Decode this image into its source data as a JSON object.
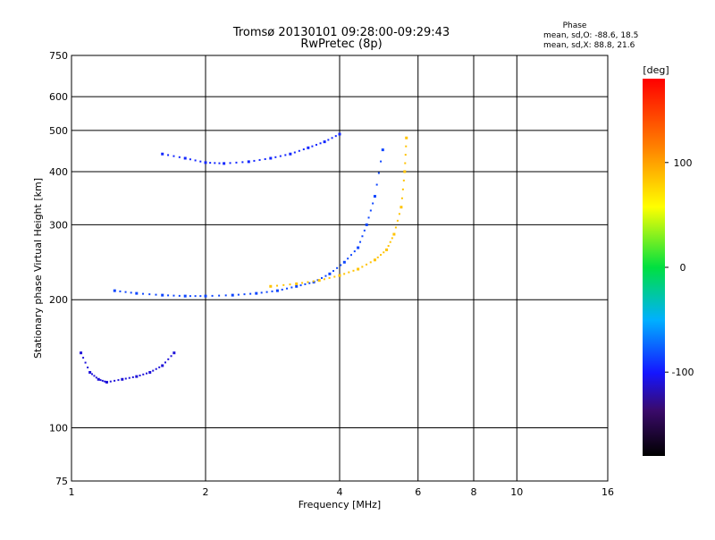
{
  "chart_data": {
    "type": "scatter",
    "title": "Tromsø 20130101 09:28:00-09:29:43",
    "subtitle": "RwPretec (8p)",
    "xlabel": "Frequency [MHz]",
    "ylabel": "Stationary phase Virtual Height [km]",
    "x_scale": "log",
    "y_scale": "log",
    "xlim": [
      1,
      16
    ],
    "ylim": [
      75,
      750
    ],
    "grid": true,
    "x_ticks": [
      1,
      2,
      4,
      6,
      8,
      10,
      16
    ],
    "x_tick_labels": [
      "1",
      "2",
      "4",
      "6",
      "8",
      "10",
      "16"
    ],
    "y_ticks": [
      75,
      100,
      200,
      300,
      400,
      500,
      600,
      750
    ],
    "y_tick_labels": [
      "75",
      "100",
      "200",
      "300",
      "400",
      "500",
      "600",
      "750"
    ],
    "phase_stats": {
      "heading": "Phase",
      "line_o": "mean, sd,O: -88.6, 18.5",
      "line_x": "mean, sd,X:  88.8, 21.6"
    },
    "colorbar": {
      "unit": "[deg]",
      "min": -180,
      "max": 180,
      "ticks": [
        100,
        0,
        -100
      ],
      "tick_labels": [
        "100",
        "0",
        "-100"
      ]
    },
    "traces": [
      {
        "name": "o_trace_lower",
        "phase": -85,
        "x": [
          1.25,
          1.4,
          1.6,
          1.8,
          2.0,
          2.3,
          2.6,
          2.9,
          3.2,
          3.5,
          3.8,
          4.1,
          4.4,
          4.6,
          4.8,
          5.0
        ],
        "y": [
          210,
          207,
          205,
          204,
          204,
          205,
          207,
          210,
          215,
          220,
          230,
          245,
          265,
          300,
          350,
          450
        ]
      },
      {
        "name": "x_trace_lower",
        "phase": 85,
        "x": [
          2.8,
          3.2,
          3.6,
          4.0,
          4.4,
          4.8,
          5.1,
          5.3,
          5.5,
          5.6,
          5.65
        ],
        "y": [
          215,
          218,
          222,
          228,
          236,
          248,
          262,
          285,
          330,
          400,
          480
        ]
      },
      {
        "name": "o_trace_upper",
        "phase": -95,
        "x": [
          1.6,
          1.8,
          2.0,
          2.2,
          2.5,
          2.8,
          3.1,
          3.4,
          3.7,
          4.0
        ],
        "y": [
          440,
          430,
          420,
          418,
          422,
          430,
          440,
          455,
          470,
          490
        ]
      },
      {
        "name": "cluster_low_freq",
        "phase": -110,
        "x": [
          1.05,
          1.1,
          1.15,
          1.2,
          1.3,
          1.4,
          1.5,
          1.6,
          1.7
        ],
        "y": [
          150,
          135,
          130,
          128,
          130,
          132,
          135,
          140,
          150
        ]
      }
    ]
  }
}
